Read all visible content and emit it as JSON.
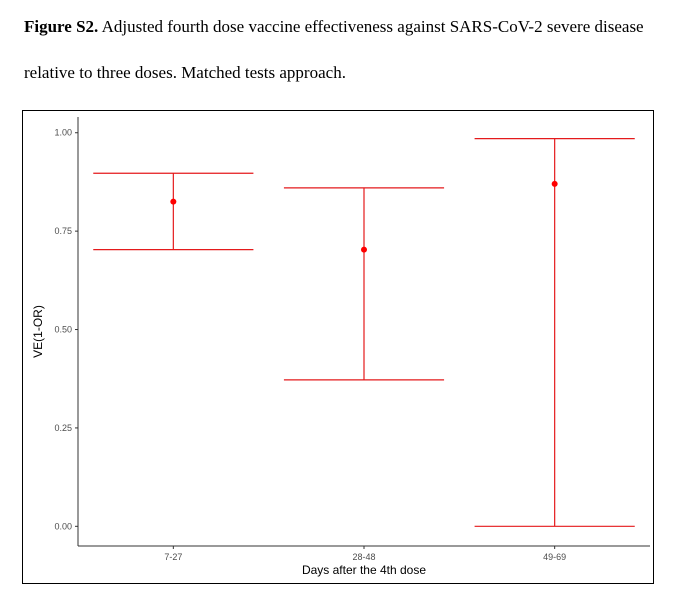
{
  "caption": {
    "label": "Figure S2.",
    "text": "Adjusted fourth dose vaccine effectiveness against SARS-CoV-2 severe disease relative to three doses. Matched tests approach."
  },
  "chart_data": {
    "type": "errorbar",
    "title": "",
    "xlabel": "Days after the 4th dose",
    "ylabel": "VE(1-OR)",
    "categories": [
      "7-27",
      "28-48",
      "49-69"
    ],
    "series": [
      {
        "name": "VE",
        "color": "#e41a1c",
        "point_color": "#ff0000",
        "values": [
          0.825,
          0.703,
          0.87
        ],
        "lower": [
          0.703,
          0.372,
          0.0
        ],
        "upper": [
          0.897,
          0.86,
          0.985
        ]
      }
    ],
    "yticks": [
      0.0,
      0.25,
      0.5,
      0.75,
      1.0
    ],
    "ytick_labels": [
      "0.00",
      "0.25",
      "0.50",
      "0.75",
      "1.00"
    ],
    "ylim": [
      -0.05,
      1.04
    ],
    "grid": false,
    "legend": "none"
  }
}
